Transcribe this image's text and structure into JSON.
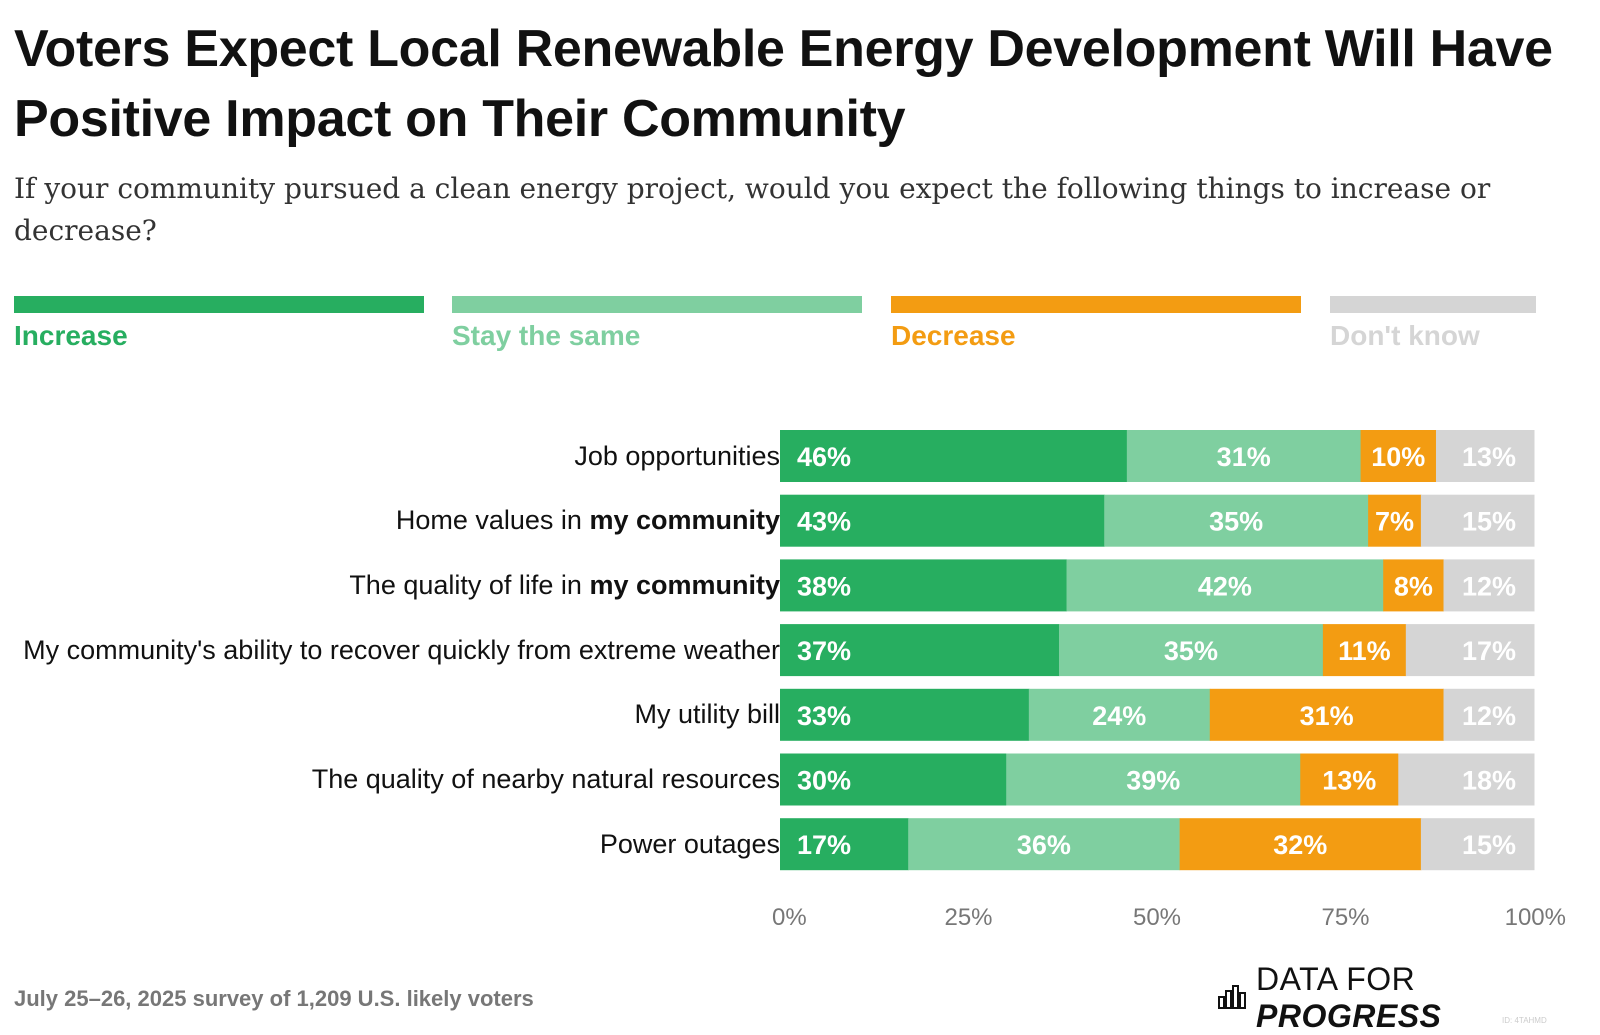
{
  "title": "Voters Expect Local Renewable Energy Development Will Have Positive Impact on Their Community",
  "subtitle": "If your community pursued a clean energy project, would you expect the following things to increase or decrease?",
  "legend": [
    {
      "label": "Increase",
      "color": "#27ae60"
    },
    {
      "label": "Stay the same",
      "color": "#7fcfa0"
    },
    {
      "label": "Decrease",
      "color": "#f39c12"
    },
    {
      "label": "Don't know",
      "color": "#d5d5d5"
    }
  ],
  "chart_data": {
    "type": "bar",
    "orientation": "horizontal",
    "stacked": true,
    "categories": [
      "Job opportunities",
      "Home values in my community",
      "The quality of life in my community",
      "My community's ability to recover quickly from extreme weather",
      "My utility bill",
      "The quality of nearby natural resources",
      "Power outages"
    ],
    "category_emphasis": [
      "",
      "my community",
      "my community",
      "",
      "",
      "",
      ""
    ],
    "series": [
      {
        "name": "Increase",
        "color": "#27ae60",
        "values": [
          46,
          43,
          38,
          37,
          33,
          30,
          17
        ]
      },
      {
        "name": "Stay the same",
        "color": "#7fcfa0",
        "values": [
          31,
          35,
          42,
          35,
          24,
          39,
          36
        ]
      },
      {
        "name": "Decrease",
        "color": "#f39c12",
        "values": [
          10,
          7,
          8,
          11,
          31,
          13,
          32
        ]
      },
      {
        "name": "Don't know",
        "color": "#d5d5d5",
        "values": [
          13,
          15,
          12,
          17,
          12,
          18,
          15
        ]
      }
    ],
    "value_suffix": "%",
    "xlim": [
      0,
      100
    ],
    "xticks": [
      "0%",
      "25%",
      "50%",
      "75%",
      "100%"
    ],
    "grid": false,
    "legend_position": "top"
  },
  "footer": {
    "note": "July 25–26, 2025 survey of 1,209 U.S. likely voters",
    "brand_regular": "DATA FOR ",
    "brand_bold": "PROGRESS",
    "brand_icon": "bar-chart-logo-icon",
    "id": "ID: 4TAHMD"
  }
}
